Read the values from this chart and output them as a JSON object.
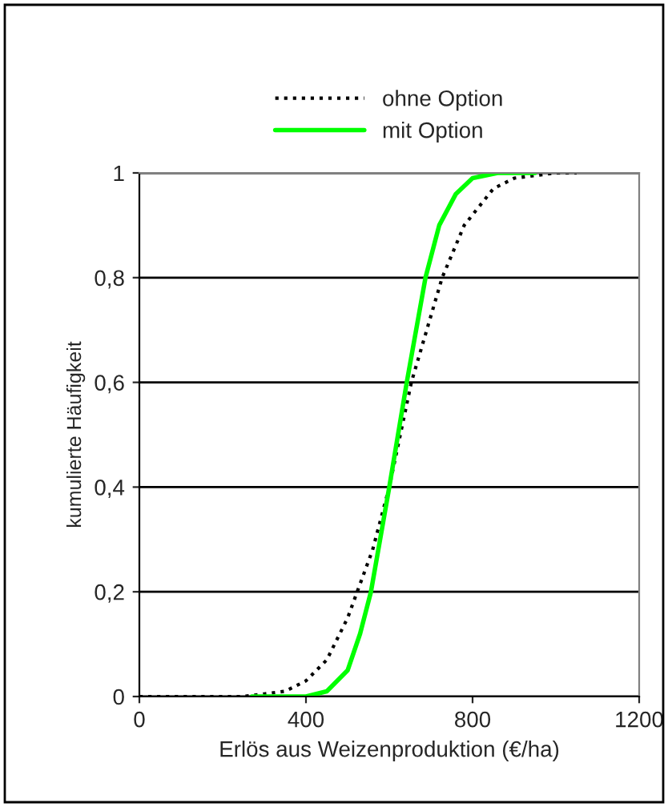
{
  "chart_data": {
    "type": "line",
    "xlabel": "Erlös aus Weizenproduktion (€/ha)",
    "ylabel": "kumulierte Häufigkeit",
    "xlim": [
      0,
      1200
    ],
    "xticks": [
      0,
      400,
      800,
      1200
    ],
    "ylim": [
      0,
      1
    ],
    "yticks": [
      0,
      {
        "value": 0.2,
        "label": "0,2"
      },
      {
        "value": 0.4,
        "label": "0,4"
      },
      {
        "value": 0.6,
        "label": "0,6"
      },
      {
        "value": 0.8,
        "label": "0,8"
      },
      1
    ],
    "grid": "y",
    "legend": "top",
    "series": [
      {
        "name": "ohne Option",
        "color": "#000000",
        "line_style": "dotted",
        "x": [
          0,
          250,
          300,
          350,
          400,
          450,
          500,
          523,
          560,
          600,
          653,
          690,
          727,
          780,
          850,
          900,
          1000,
          1050
        ],
        "values": [
          0,
          0,
          0.005,
          0.01,
          0.03,
          0.07,
          0.15,
          0.2,
          0.28,
          0.4,
          0.6,
          0.7,
          0.8,
          0.9,
          0.97,
          0.99,
          1,
          1
        ]
      },
      {
        "name": "mit Option",
        "color": "#00ff00",
        "line_style": "solid",
        "x": [
          270,
          400,
          450,
          500,
          530,
          556,
          600,
          642,
          687,
          720,
          760,
          800,
          860,
          950
        ],
        "values": [
          0,
          0,
          0.01,
          0.05,
          0.12,
          0.2,
          0.4,
          0.6,
          0.8,
          0.9,
          0.96,
          0.99,
          1,
          1
        ]
      }
    ]
  }
}
